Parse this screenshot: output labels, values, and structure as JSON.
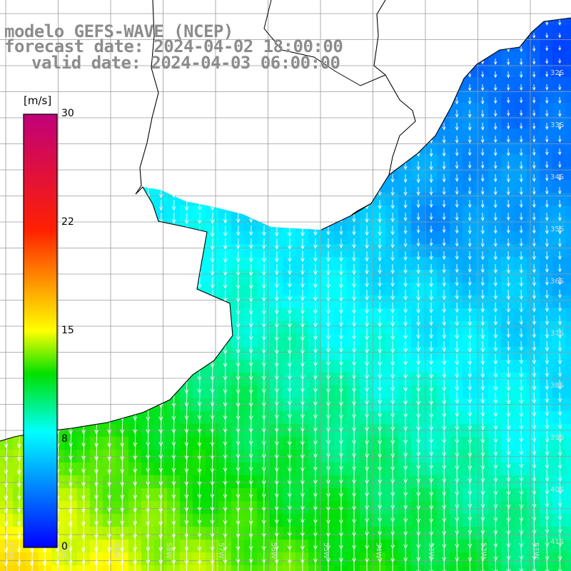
{
  "header": {
    "model": "modelo GEFS-WAVE (NCEP)",
    "forecast": "forecast date: 2024-04-02 18:00:00",
    "valid": "valid date: 2024-04-03 06:00:00"
  },
  "colorbar": {
    "unit": "[m/s]",
    "ticks": [
      "30",
      "22",
      "15",
      "8",
      "0"
    ],
    "stops": [
      {
        "value": 0,
        "color": "#0000ff"
      },
      {
        "value": 8,
        "color": "#00ffff"
      },
      {
        "value": 12,
        "color": "#00e000"
      },
      {
        "value": 15,
        "color": "#ffff00"
      },
      {
        "value": 22,
        "color": "#ff2000"
      },
      {
        "value": 30,
        "color": "#c0007a"
      }
    ]
  },
  "map": {
    "lat_labels": [
      "32S",
      "33S",
      "34S",
      "35S",
      "36S",
      "37S",
      "38S",
      "39S",
      "40S",
      "41S"
    ],
    "lon_labels": [
      "61W",
      "60W",
      "59W",
      "58W",
      "57W",
      "56W",
      "55W",
      "54W",
      "53W",
      "52W",
      "51W"
    ],
    "ocean_color": "#3a7bff",
    "land_color": "#ffffff",
    "grid_color": "#9a9a9a",
    "arrow_color": "#ffffff",
    "coast_color": "#000000"
  }
}
